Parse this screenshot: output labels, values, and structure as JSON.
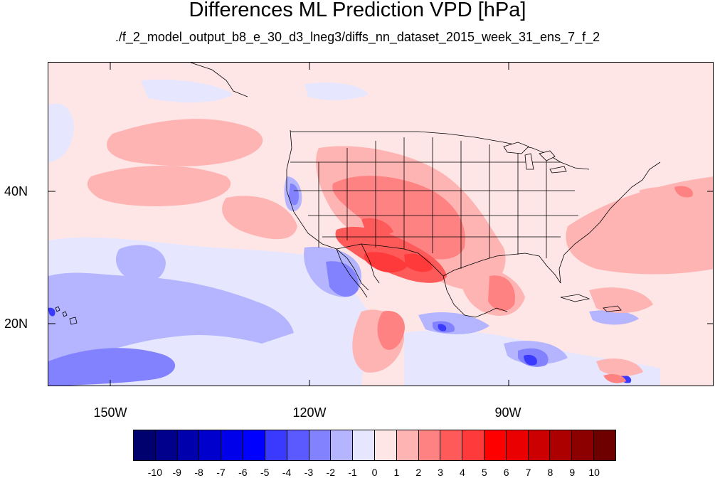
{
  "title": "Differences ML Prediction VPD [hPa]",
  "subtitle": "./f_2_model_output_b8_e_30_d3_lneg3/diffs_nn_dataset_2015_week_31_ens_7_f_2",
  "map": {
    "lat_labels": [
      "40N",
      "20N"
    ],
    "lon_labels": [
      "150W",
      "120W",
      "90W"
    ],
    "background_color": "#ffe6e6"
  },
  "colorbar": {
    "colors": [
      "#00006e",
      "#00008c",
      "#0000ac",
      "#0000cc",
      "#0000ea",
      "#0000ff",
      "#3a3aff",
      "#5a5aff",
      "#8282ff",
      "#b4b4ff",
      "#e6e6ff",
      "#ffe6e6",
      "#ffb4b4",
      "#ff8282",
      "#ff5a5a",
      "#ff3a3a",
      "#ff0000",
      "#ea0000",
      "#cc0000",
      "#ac0000",
      "#8c0000",
      "#6e0000"
    ],
    "labels": [
      "-10",
      "-9",
      "-8",
      "-7",
      "-6",
      "-5",
      "-4",
      "-3",
      "-2",
      "-1",
      "0",
      "1",
      "2",
      "3",
      "4",
      "5",
      "6",
      "7",
      "8",
      "9",
      "10"
    ]
  }
}
